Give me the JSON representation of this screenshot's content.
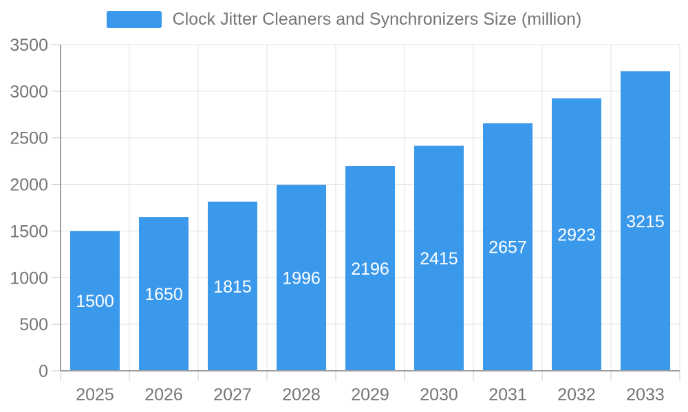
{
  "chart_data": {
    "type": "bar",
    "title": "Clock Jitter Cleaners and Synchronizers Size (million)",
    "categories": [
      "2025",
      "2026",
      "2027",
      "2028",
      "2029",
      "2030",
      "2031",
      "2032",
      "2033"
    ],
    "values": [
      1500,
      1650,
      1815,
      1996,
      2196,
      2415,
      2657,
      2923,
      3215
    ],
    "xlabel": "",
    "ylabel": "",
    "ylim": [
      0,
      3500
    ],
    "ytick_step": 500,
    "grid": true,
    "legend_position": "top-center",
    "legend_entries": [
      "Clock Jitter Cleaners and Synchronizers Size (million)"
    ],
    "bar_color": "#3B99EC",
    "value_label_color": "#FFFFFF",
    "axis_label_color": "#757575",
    "gridline_color": "#E3E3E3",
    "tick_color": "#C9C9C9",
    "axis_line_color": "#9E9E9E"
  }
}
